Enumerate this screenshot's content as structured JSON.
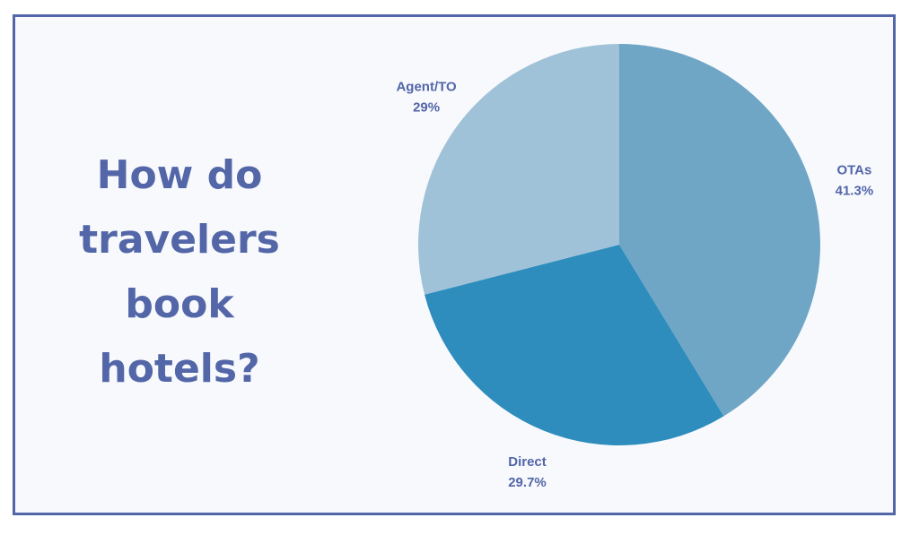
{
  "heading": {
    "lines": [
      "How do",
      "travelers",
      "book",
      "hotels?"
    ]
  },
  "chart_data": {
    "type": "pie",
    "title": "How do travelers book hotels?",
    "labels": [
      "OTAs",
      "Direct",
      "Agent/TO"
    ],
    "values": [
      41.3,
      29.7,
      29
    ],
    "value_labels": [
      "41.3%",
      "29.7%",
      "29%"
    ],
    "colors": [
      "#6fa6c5",
      "#2e8dbd",
      "#9fc2d8"
    ],
    "start": "top",
    "direction": "clockwise",
    "label_color": "#5266a8"
  }
}
